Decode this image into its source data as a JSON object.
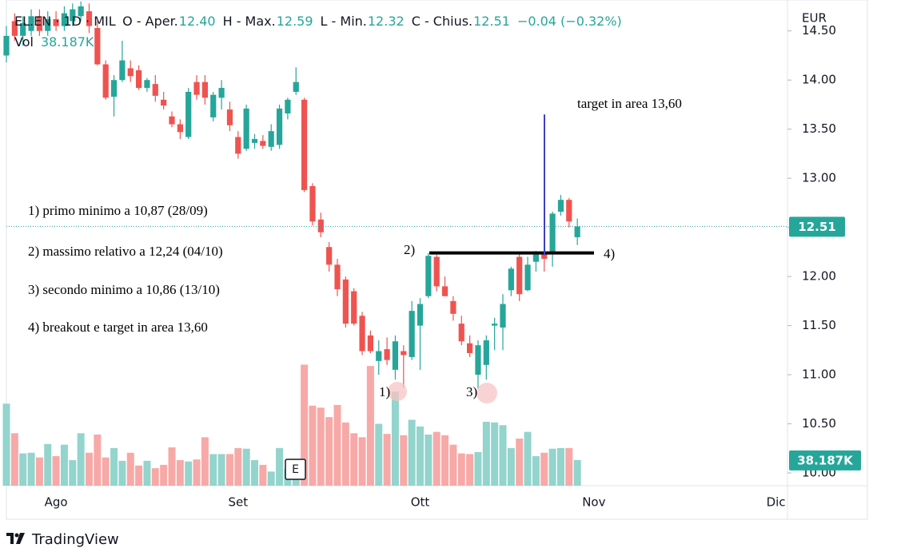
{
  "chart_data": {
    "type": "candlestick",
    "header": {
      "symbol": "EL.EN · 1D · MIL",
      "ohlc": [
        {
          "key": "O - Aper.",
          "value": "12.40"
        },
        {
          "key": "H - Max.",
          "value": "12.59"
        },
        {
          "key": "L - Min.",
          "value": "12.32"
        },
        {
          "key": "C - Chius.",
          "value": "12.51"
        }
      ],
      "change": "−0.04 (−0.32%)"
    },
    "currency": "EUR",
    "categories": [
      null,
      null,
      null,
      null,
      null,
      null,
      "Ago",
      null,
      null,
      null,
      null,
      null,
      null,
      null,
      null,
      null,
      null,
      null,
      null,
      null,
      null,
      null,
      null,
      null,
      null,
      null,
      null,
      null,
      "Set",
      null,
      null,
      null,
      null,
      null,
      null,
      null,
      null,
      null,
      null,
      null,
      null,
      null,
      null,
      null,
      null,
      null,
      null,
      null,
      null,
      null,
      "Ott",
      null,
      null,
      null,
      null,
      null,
      null,
      null,
      null,
      null,
      null,
      null,
      null,
      null,
      null,
      null,
      null,
      null,
      null,
      null,
      null,
      "Nov",
      null,
      null,
      null,
      null,
      null,
      null,
      null,
      null,
      null,
      null,
      null,
      null,
      null,
      null,
      null,
      null,
      null,
      null,
      null,
      null,
      null,
      "Dic"
    ],
    "open": [
      14.25,
      14.6,
      14.45,
      14.5,
      14.65,
      14.5,
      14.62,
      14.55,
      14.6,
      14.65,
      14.7,
      14.53,
      14.16,
      13.83,
      14.0,
      14.12,
      14.1,
      13.92,
      13.96,
      13.8,
      13.63,
      13.55,
      13.42,
      13.98,
      13.98,
      13.62,
      13.82,
      13.7,
      13.42,
      13.3,
      13.36,
      13.38,
      13.32,
      13.34,
      13.66,
      13.88,
      13.8,
      12.92,
      12.58,
      12.3,
      12.12,
      11.97,
      11.85,
      11.6,
      11.4,
      11.14,
      11.26,
      11.05,
      11.24,
      11.18,
      11.5,
      11.8,
      12.2,
      11.9,
      11.75,
      11.52,
      11.32,
      11.0,
      11.1,
      11.5,
      11.48,
      11.86,
      12.2,
      11.86,
      12.15,
      12.24,
      12.23,
      12.66,
      12.78,
      12.4,
      null,
      null,
      null,
      null,
      null,
      null,
      null,
      null,
      null,
      null,
      null,
      null,
      null,
      null,
      null,
      null,
      null,
      null,
      null,
      null,
      null,
      null,
      null,
      null
    ],
    "high": [
      14.55,
      14.68,
      14.65,
      14.72,
      14.72,
      14.7,
      14.7,
      14.75,
      14.78,
      14.8,
      14.78,
      14.6,
      14.2,
      14.05,
      14.4,
      14.2,
      14.15,
      14.02,
      14.05,
      13.88,
      13.68,
      13.6,
      13.92,
      14.05,
      14.05,
      13.88,
      14.0,
      13.78,
      13.48,
      13.75,
      13.45,
      13.44,
      13.55,
      13.75,
      13.82,
      14.13,
      13.82,
      12.95,
      12.65,
      12.35,
      12.18,
      12.0,
      11.88,
      11.64,
      11.45,
      11.35,
      11.38,
      11.4,
      11.3,
      11.75,
      11.78,
      12.24,
      12.22,
      12.0,
      11.8,
      11.6,
      11.4,
      11.35,
      11.4,
      11.58,
      11.82,
      12.1,
      12.24,
      12.2,
      12.26,
      12.28,
      12.66,
      12.83,
      12.8,
      12.59,
      null,
      null,
      null,
      null,
      null,
      null,
      null,
      null,
      null,
      null,
      null,
      null,
      null,
      null,
      null,
      null,
      null,
      null,
      null,
      null,
      null,
      null,
      null,
      null
    ],
    "low": [
      14.18,
      14.4,
      14.35,
      14.45,
      14.45,
      14.45,
      14.5,
      14.5,
      14.55,
      14.6,
      14.48,
      14.15,
      13.8,
      13.63,
      13.98,
      13.98,
      13.9,
      13.88,
      13.78,
      13.7,
      13.52,
      13.4,
      13.4,
      13.8,
      13.75,
      13.58,
      13.7,
      13.48,
      13.2,
      13.28,
      13.3,
      13.3,
      13.28,
      13.3,
      13.6,
      13.85,
      12.86,
      12.52,
      12.4,
      12.05,
      11.8,
      11.48,
      11.5,
      11.2,
      11.22,
      11.0,
      11.1,
      10.95,
      10.87,
      11.15,
      11.05,
      11.78,
      11.85,
      11.8,
      11.55,
      11.3,
      11.18,
      10.86,
      10.95,
      11.25,
      11.25,
      11.8,
      11.75,
      11.85,
      12.05,
      12.05,
      12.1,
      12.62,
      12.5,
      12.32,
      null,
      null,
      null,
      null,
      null,
      null,
      null,
      null,
      null,
      null,
      null,
      null,
      null,
      null,
      null,
      null,
      null,
      null,
      null,
      null,
      null,
      null,
      null,
      null
    ],
    "close": [
      14.45,
      14.45,
      14.58,
      14.65,
      14.5,
      14.62,
      14.55,
      14.68,
      14.72,
      14.75,
      14.55,
      14.16,
      13.82,
      14.0,
      14.2,
      14.04,
      13.92,
      14.0,
      13.84,
      13.74,
      13.55,
      13.47,
      13.88,
      13.85,
      13.82,
      13.85,
      13.92,
      13.54,
      13.25,
      13.71,
      13.4,
      13.33,
      13.48,
      13.71,
      13.8,
      13.98,
      12.88,
      12.56,
      12.45,
      12.12,
      11.87,
      11.52,
      11.52,
      11.24,
      11.24,
      11.24,
      11.15,
      11.34,
      11.2,
      11.65,
      11.72,
      12.21,
      11.9,
      11.8,
      11.62,
      11.34,
      11.22,
      11.3,
      11.35,
      11.52,
      11.72,
      12.08,
      11.82,
      12.12,
      12.24,
      12.18,
      12.64,
      12.78,
      12.56,
      12.51,
      null,
      null,
      null,
      null,
      null,
      null,
      null,
      null,
      null,
      null,
      null,
      null,
      null,
      null,
      null,
      null,
      null,
      null,
      null,
      null,
      null,
      null,
      null,
      null
    ],
    "up_color": "#26a69a",
    "down_color": "#ef5350",
    "volume": {
      "name": "Vol",
      "values": [
        122000,
        78000,
        48000,
        49000,
        42000,
        62000,
        44000,
        61000,
        38000,
        78000,
        49000,
        76000,
        42000,
        56000,
        37000,
        49000,
        30000,
        37000,
        26000,
        31000,
        57000,
        38000,
        36000,
        39000,
        72000,
        47000,
        47000,
        47000,
        56000,
        55000,
        38000,
        31000,
        21000,
        56000,
        25000,
        35000,
        180000,
        119000,
        116000,
        102000,
        120000,
        94000,
        78000,
        72000,
        178000,
        92000,
        77000,
        140000,
        75000,
        98000,
        88000,
        76000,
        80000,
        75000,
        61000,
        48000,
        47000,
        50000,
        95000,
        94000,
        90000,
        56000,
        70000,
        80000,
        44000,
        49000,
        55000,
        56000,
        56000,
        38187,
        null,
        null,
        null,
        null,
        null,
        null,
        null,
        null,
        null,
        null,
        null,
        null,
        null,
        null,
        null,
        null,
        null,
        null,
        null,
        null,
        null,
        null,
        null,
        null
      ],
      "value_label": "38.187K",
      "ylim": [
        0,
        190000
      ],
      "up_color": "#93d4cd",
      "down_color": "#f7a9a7"
    },
    "ylim": [
      9.87,
      14.75
    ],
    "yticks": [
      {
        "value": 10,
        "label": "10.00"
      },
      {
        "value": 10.5,
        "label": "10.50"
      },
      {
        "value": 11,
        "label": "11.00"
      },
      {
        "value": 11.5,
        "label": "11.50"
      },
      {
        "value": 12,
        "label": "12.00"
      },
      {
        "value": 12.5,
        "label": "12.50"
      },
      {
        "value": 13,
        "label": "13.00"
      },
      {
        "value": 13.5,
        "label": "13.50"
      },
      {
        "value": 14,
        "label": "14.00"
      },
      {
        "value": 14.5,
        "label": "14.50"
      }
    ],
    "annotations": {
      "notes": [
        "1) primo minimo a 10,87 (28/09)",
        "2) massimo relativo a 12,24 (04/10)",
        "3) secondo minimo a 10,86 (13/10)",
        "4) breakout e target in area 13,60"
      ],
      "target": "target in area 13,60",
      "markers": [
        "1)",
        "2)",
        "3)",
        "4)"
      ],
      "resistance": 12.24,
      "target_line": [
        12.22,
        13.65
      ],
      "resistance_color": "#000000",
      "target_color": "#3f3fc0"
    },
    "event": "E",
    "footer": "TradingView"
  }
}
